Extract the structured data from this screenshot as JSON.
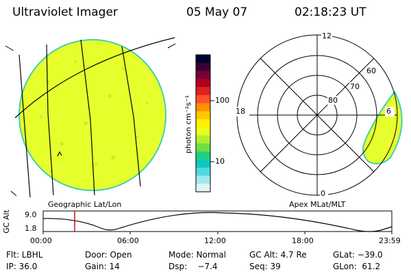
{
  "header": {
    "instrument": "Ultraviolet Imager",
    "date": "05 May 07",
    "time": "02:18:23 UT"
  },
  "left_panel": {
    "caption": "Geographic Lat/Lon"
  },
  "colorbar": {
    "unit_label": "photon cm⁻²s⁻¹",
    "tick_100": "100",
    "tick_10": "10",
    "colors": [
      "#000033",
      "#3a0033",
      "#7a003a",
      "#b00020",
      "#e02020",
      "#ff5030",
      "#ff9000",
      "#ffc800",
      "#fff000",
      "#e8ff20",
      "#b0f030",
      "#70e040",
      "#20d080",
      "#10c8c0",
      "#50d8e0",
      "#a0e8ee",
      "#e0f4f4"
    ]
  },
  "right_panel": {
    "caption": "Apex MLat/MLT",
    "mlt_labels": {
      "top": "12",
      "left": "18",
      "right": "6",
      "bottom": "0"
    },
    "lat_labels": [
      "60",
      "70",
      "80"
    ]
  },
  "alt_strip": {
    "ylabel": "GC Alt",
    "y_ticks": [
      "9.0",
      "1.8"
    ],
    "x_ticks": [
      "00:00",
      "06:00",
      "12:00",
      "18:00",
      "23:59"
    ],
    "marker_time": "02:18"
  },
  "status": {
    "row1": {
      "flt": "Flt: LBHL",
      "door": "Door: Open",
      "mode": "Mode: Normal",
      "gcalt": "GC Alt: 4.7 Re",
      "glat": "GLat: −39.0"
    },
    "row2": {
      "ip": "IP: 36.0",
      "gain": "Gain: 14",
      "dsp": "Dsp:    −7.4",
      "seq": "Seq: 39",
      "glon": "GLon:  61.2"
    }
  },
  "colors": {
    "disk_fill": "#e6ff2c",
    "disk_edge": "#40d0b0",
    "marker": "#c00000"
  }
}
